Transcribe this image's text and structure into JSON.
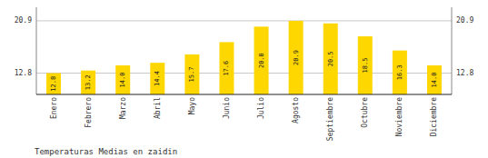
{
  "chart_data": {
    "type": "bar",
    "title": "Temperaturas Medias en zaidin",
    "categories": [
      "Enero",
      "Febrero",
      "Marzo",
      "Abril",
      "Mayo",
      "Junio",
      "Julio",
      "Agosto",
      "Septiembre",
      "Octubre",
      "Noviembre",
      "Diciembre"
    ],
    "values": [
      12.8,
      13.2,
      14.0,
      14.4,
      15.7,
      17.6,
      20.0,
      20.9,
      20.5,
      18.5,
      16.3,
      14.0
    ],
    "value_labels": [
      "12.8",
      "13.2",
      "14.0",
      "14.4",
      "15.7",
      "17.6",
      "20.0",
      "20.9",
      "20.5",
      "18.5",
      "16.3",
      "14.0"
    ],
    "color": "#FFD700",
    "ylim": [
      9.5,
      23.0
    ],
    "yticks": [
      12.8,
      20.9
    ],
    "y2lim": [
      9.5,
      23.0
    ],
    "y2ticks": [
      12.8,
      20.9
    ],
    "grid": true,
    "data_labels": true
  }
}
